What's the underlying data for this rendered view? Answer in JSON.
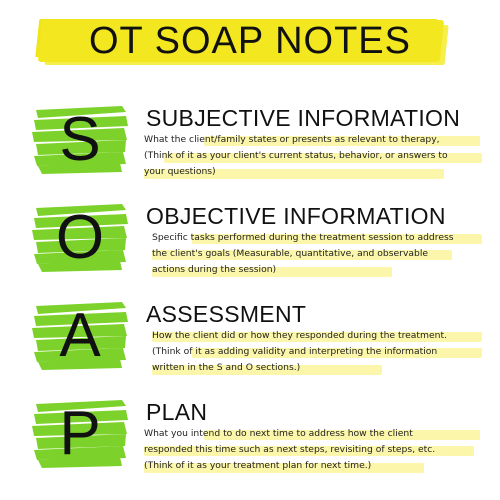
{
  "title": "OT SOAP NOTES",
  "colors": {
    "title_highlight": "#f3e81f",
    "letter_brush": "#7cd22a",
    "description_highlight": "#fbf6a9",
    "text": "#111111"
  },
  "sections": [
    {
      "letter": "S",
      "heading": "SUBJECTIVE INFORMATION",
      "lines": [
        "What the client/family states or presents as relevant to therapy,",
        "(Think of it as your client's current status, behavior, or answers to",
        "your questions)"
      ]
    },
    {
      "letter": "O",
      "heading": "OBJECTIVE INFORMATION",
      "lines": [
        "Specific tasks performed during the treatment session to address",
        "the client's goals (Measurable, quantitative, and observable",
        "actions during the session)"
      ]
    },
    {
      "letter": "A",
      "heading": "ASSESSMENT",
      "lines": [
        "How the client did or how they responded during the treatment.",
        "(Think of it as adding validity and interpreting the information",
        "written in the S and O sections.)"
      ]
    },
    {
      "letter": "P",
      "heading": "PLAN",
      "lines": [
        "What you intend to do next time to address how the client",
        "responded this time such as next steps, revisiting of steps, etc.",
        "(Think of it as your treatment plan for next time.)"
      ]
    }
  ]
}
